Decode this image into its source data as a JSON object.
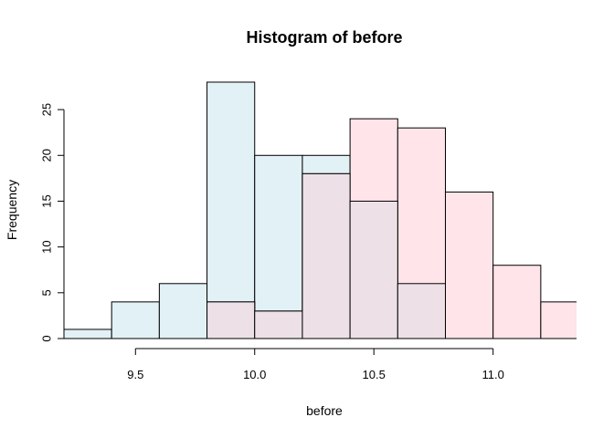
{
  "chart_data": {
    "type": "bar",
    "title": "Histogram of before",
    "xlabel": "before",
    "ylabel": "Frequency",
    "xlim": [
      9.2,
      11.35
    ],
    "ylim": [
      0,
      28
    ],
    "grid": false,
    "xticks": [
      9.5,
      10.0,
      10.5,
      11.0
    ],
    "xtick_labels": [
      "9.5",
      "10.0",
      "10.5",
      "11.0"
    ],
    "yticks": [
      0,
      5,
      10,
      15,
      20,
      25
    ],
    "ytick_labels": [
      "0",
      "5",
      "10",
      "15",
      "20",
      "25"
    ],
    "bin_edges": [
      9.2,
      9.4,
      9.6,
      9.8,
      10.0,
      10.2,
      10.4,
      10.6,
      10.8,
      11.0,
      11.2,
      11.4
    ],
    "series": [
      {
        "color": "#e2f1f6",
        "values": [
          1,
          4,
          6,
          28,
          20,
          20,
          15,
          6,
          0,
          0,
          0
        ]
      },
      {
        "color": "#ffe4e9",
        "values": [
          0,
          0,
          0,
          4,
          3,
          18,
          24,
          23,
          16,
          8,
          4
        ]
      }
    ],
    "overlap_color": "#ede1e7"
  }
}
